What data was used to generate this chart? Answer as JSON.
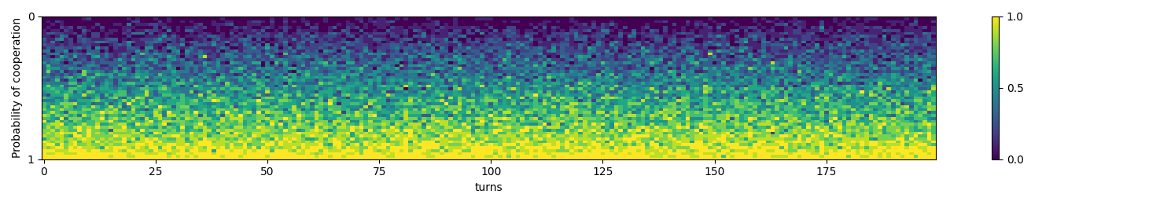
{
  "n_rows": 50,
  "n_cols": 200,
  "xlabel": "turns",
  "ylabel": "Probability of cooperation",
  "xticks": [
    0,
    25,
    50,
    75,
    100,
    125,
    150,
    175
  ],
  "ytick_positions": [
    0,
    49
  ],
  "ytick_labels": [
    "0",
    "1"
  ],
  "cmap": "viridis",
  "vmin": 0.0,
  "vmax": 1.0,
  "colorbar_ticks": [
    0.0,
    0.5,
    1.0
  ],
  "figsize": [
    14.89,
    2.61
  ],
  "dpi": 100,
  "seed": 0,
  "noise_std": 0.08
}
